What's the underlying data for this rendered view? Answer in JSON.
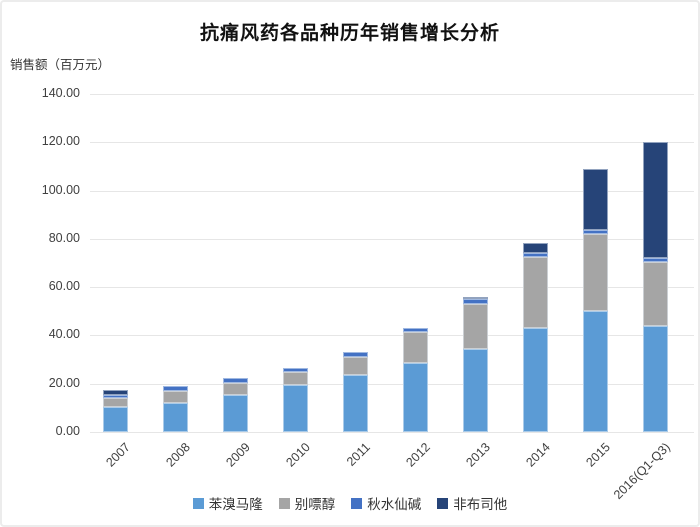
{
  "window": {
    "background": "#ffffff",
    "border_color": "#ececec"
  },
  "chart_data": {
    "type": "bar",
    "stacked": true,
    "title": "抗痛风药各品种历年销售增长分析",
    "ylabel": "销售额（百万元）",
    "xlabel": "",
    "categories": [
      "2007",
      "2008",
      "2009",
      "2010",
      "2011",
      "2012",
      "2013",
      "2014",
      "2015",
      "2016(Q1-Q3)"
    ],
    "series": [
      {
        "name": "苯溴马隆",
        "color": "#5B9BD5",
        "values": [
          10.5,
          12.0,
          15.5,
          19.5,
          23.5,
          28.5,
          34.5,
          43.0,
          50.0,
          44.0
        ]
      },
      {
        "name": "别嘌醇",
        "color": "#A5A5A5",
        "values": [
          3.5,
          5.0,
          5.0,
          5.5,
          7.5,
          13.0,
          18.5,
          29.5,
          32.0,
          26.5
        ]
      },
      {
        "name": "秋水仙碱",
        "color": "#4472C4",
        "values": [
          1.5,
          2.0,
          2.0,
          1.5,
          2.0,
          1.5,
          2.0,
          1.5,
          1.5,
          1.5
        ]
      },
      {
        "name": "非布司他",
        "color": "#264478",
        "values": [
          2.0,
          0.0,
          0.0,
          0.0,
          0.0,
          0.0,
          1.0,
          4.5,
          25.5,
          48.0
        ]
      }
    ],
    "totals": [
      17.5,
      19.0,
      22.5,
      26.5,
      33.0,
      43.0,
      56.0,
      78.5,
      109.0,
      120.0
    ],
    "ylim": [
      0,
      140
    ],
    "ytick_step": 20,
    "ytick_labels": [
      "0.00",
      "20.00",
      "40.00",
      "60.00",
      "80.00",
      "100.00",
      "120.00",
      "140.00"
    ],
    "grid": true,
    "gridline_color": "#e6e6e6",
    "axis_text_color": "#404040",
    "legend_position": "bottom",
    "xtick_rotation_deg": -45
  }
}
